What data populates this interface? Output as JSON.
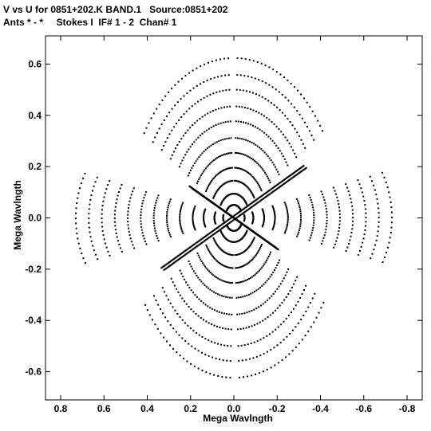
{
  "header": {
    "title_line1": "V vs U for 0851+202.K BAND.1   Source:0851+202",
    "title_line2": "Ants * - *     Stokes I  IF# 1 - 2  Chan# 1"
  },
  "chart_data": {
    "type": "scatter",
    "title": "V vs U for 0851+202.K BAND.1   Source:0851+202",
    "subtitle": "Ants * - *     Stokes I  IF# 1 - 2  Chan# 1",
    "xlabel": "Mega Wavlngth",
    "ylabel": "Mega Wavlngth",
    "xlim": [
      0.87,
      -0.87
    ],
    "ylim": [
      -0.71,
      0.71
    ],
    "x_ticks": [
      0.8,
      0.6,
      0.4,
      0.2,
      0.0,
      -0.2,
      -0.4,
      -0.6,
      -0.8
    ],
    "x_tick_labels": [
      "0.8",
      "0.6",
      "0.4",
      "0.2",
      "0.0",
      "-0.2",
      "-0.4",
      "-0.6",
      "-0.8"
    ],
    "y_ticks": [
      0.6,
      0.4,
      0.2,
      0.0,
      -0.2,
      -0.4,
      -0.6
    ],
    "y_tick_labels": [
      "0.6",
      "0.4",
      "0.2",
      "0.0",
      "-0.2",
      "-0.4",
      "-0.6"
    ],
    "grid": false,
    "marker_color": "#000000",
    "series": [
      {
        "pattern": "uv-coverage tracks (point-symmetric ellipse arcs)",
        "tracks": [
          {
            "a": 0.05,
            "b": 0.035
          },
          {
            "a": 0.09,
            "b": 0.065
          },
          {
            "a": 0.14,
            "b": 0.1
          },
          {
            "a": 0.19,
            "b": 0.135
          },
          {
            "a": 0.25,
            "b": 0.175
          },
          {
            "a": 0.31,
            "b": 0.215
          },
          {
            "a": 0.37,
            "b": 0.26
          },
          {
            "a": 0.43,
            "b": 0.3
          },
          {
            "a": 0.49,
            "b": 0.345
          },
          {
            "a": 0.55,
            "b": 0.385
          },
          {
            "a": 0.61,
            "b": 0.43
          },
          {
            "a": 0.67,
            "b": 0.47
          },
          {
            "a": 0.73,
            "b": 0.515
          },
          {
            "a": 0.79,
            "b": 0.56
          },
          {
            "a": 0.84,
            "b": 0.6
          }
        ],
        "arms": [
          {
            "angle_deg": 60,
            "length": 0.72
          },
          {
            "angle_deg": 120,
            "length": 0.72
          },
          {
            "angle_deg": 240,
            "length": 0.72
          },
          {
            "angle_deg": 300,
            "length": 0.72
          },
          {
            "angle_deg": 0,
            "length": 0.86
          },
          {
            "angle_deg": 180,
            "length": 0.86
          }
        ],
        "diagonal_bands": [
          {
            "from": [
              0.0,
              0.0
            ],
            "to": [
              0.33,
              -0.2
            ]
          },
          {
            "from": [
              0.0,
              0.0
            ],
            "to": [
              -0.33,
              0.2
            ]
          },
          {
            "from": [
              0.0,
              0.0
            ],
            "to": [
              -0.2,
              -0.12
            ]
          },
          {
            "from": [
              0.0,
              0.0
            ],
            "to": [
              0.2,
              0.12
            ]
          }
        ]
      }
    ]
  }
}
